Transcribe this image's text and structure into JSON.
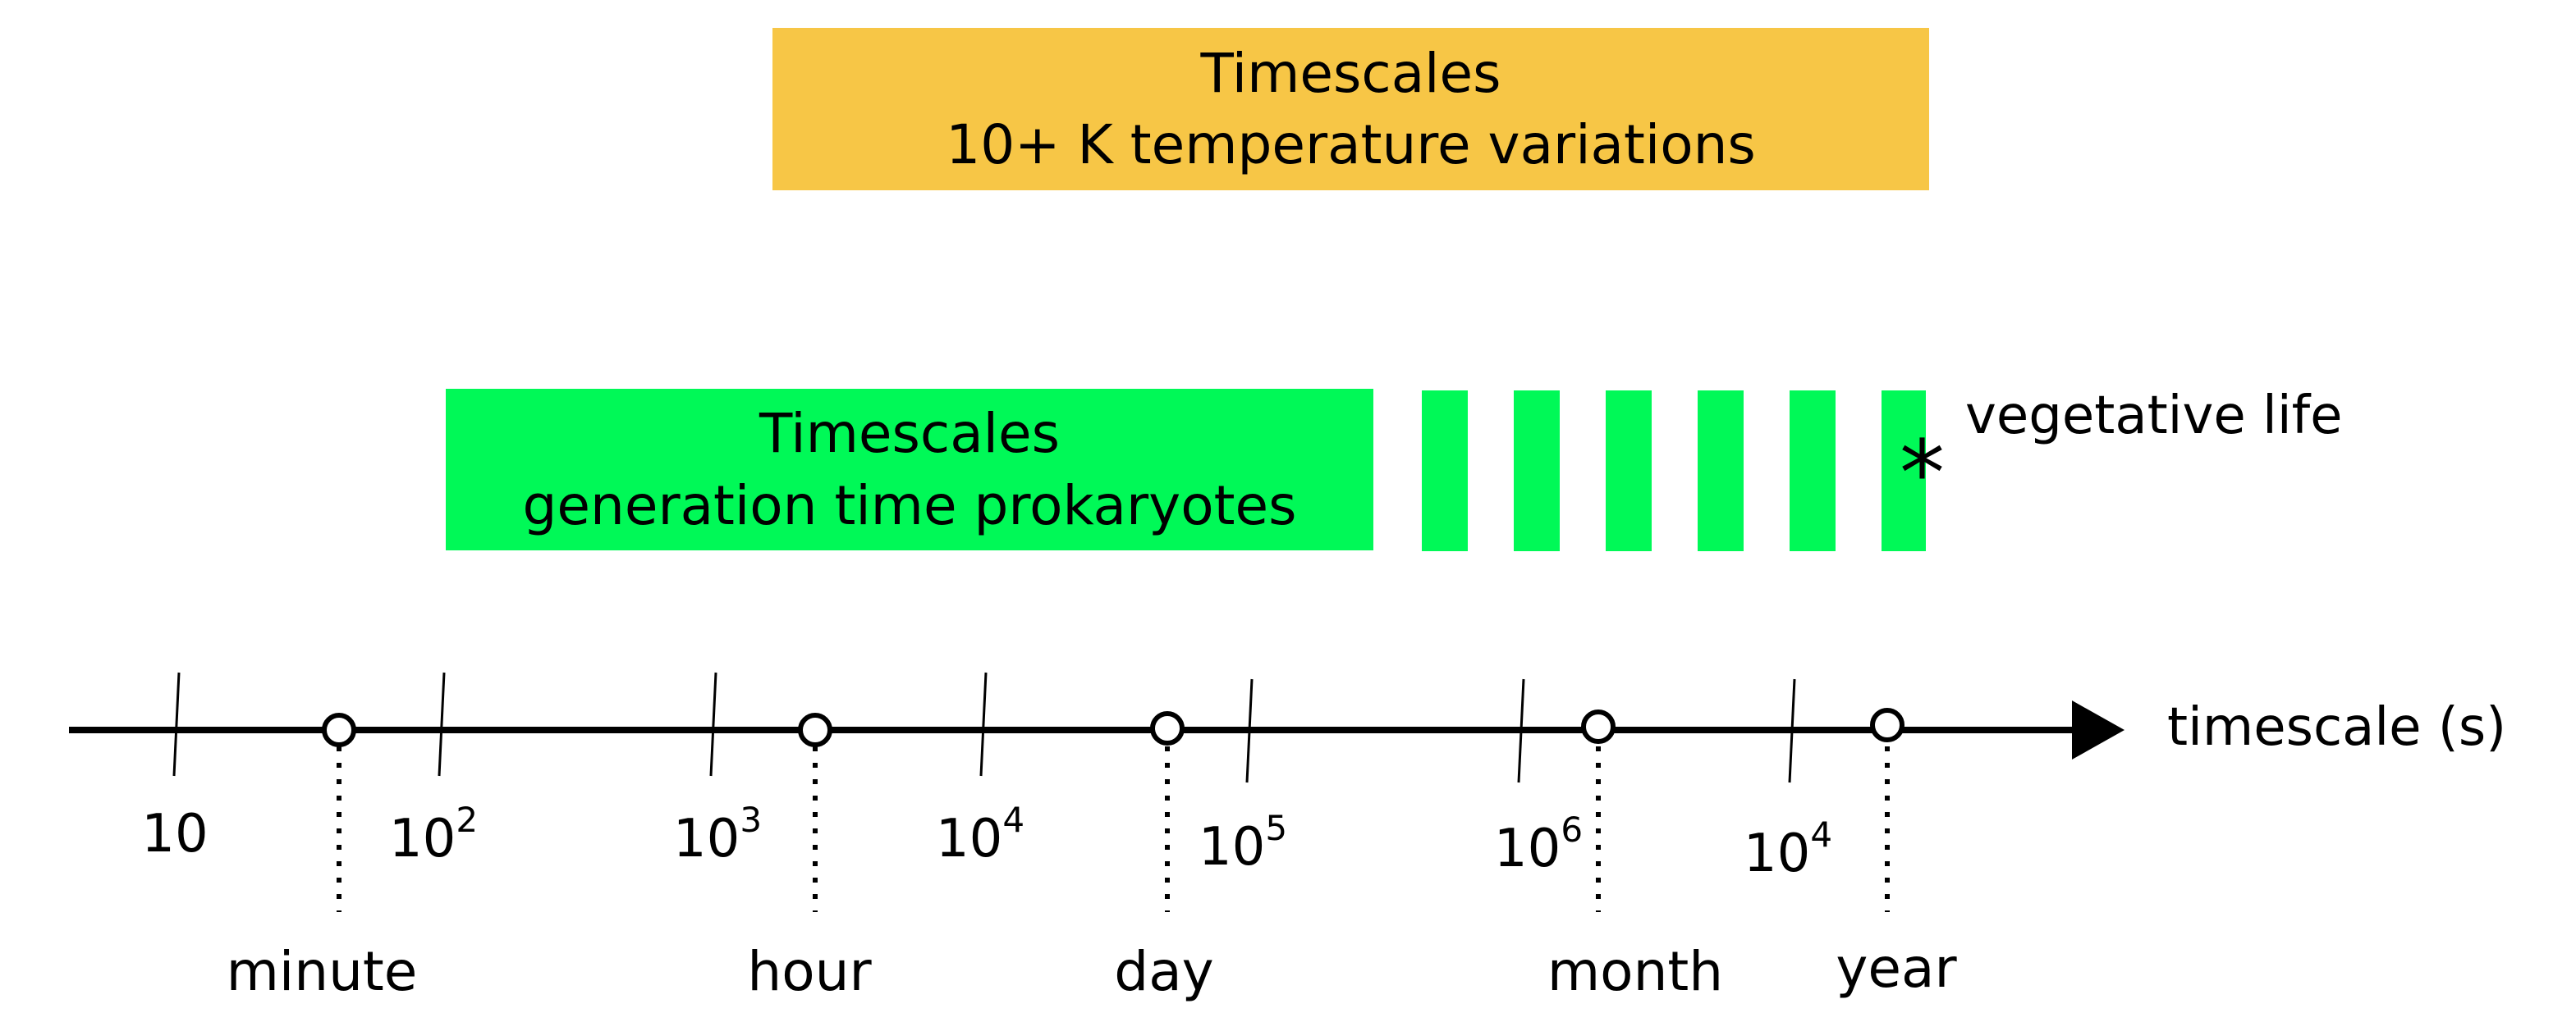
{
  "top_box": {
    "line1": "Timescales",
    "line2": "10+ K temperature variations",
    "color": "#f7c646"
  },
  "green_box": {
    "line1": "Timescales",
    "line2": "generation time prokaryotes",
    "color": "#00f957",
    "extension_label": "vegetative life",
    "marker": "*"
  },
  "axis": {
    "label": "timescale (s)",
    "ticks": [
      {
        "base": "10",
        "exp": ""
      },
      {
        "base": "10",
        "exp": "2"
      },
      {
        "base": "10",
        "exp": "3"
      },
      {
        "base": "10",
        "exp": "4"
      },
      {
        "base": "10",
        "exp": "5"
      },
      {
        "base": "10",
        "exp": "6"
      },
      {
        "base": "10",
        "exp": "4"
      }
    ],
    "markers": [
      "minute",
      "hour",
      "day",
      "month",
      "year"
    ]
  }
}
